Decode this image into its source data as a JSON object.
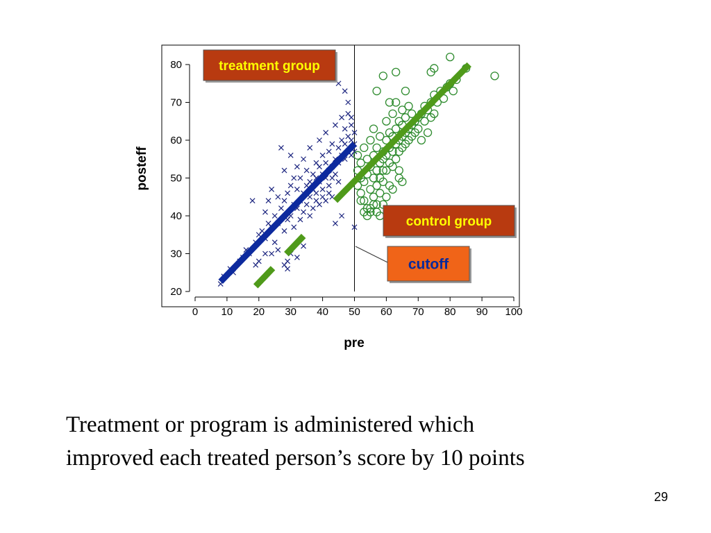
{
  "slide": {
    "caption_lines": [
      "Treatment or program is administered which",
      "improved each treated person’s score by 10 points"
    ],
    "page_number": "29"
  },
  "chart_data": {
    "type": "scatter",
    "xlabel": "pre",
    "ylabel": "posteff",
    "xlim": [
      0,
      100
    ],
    "ylim": [
      20,
      80
    ],
    "xticks": [
      0,
      10,
      20,
      30,
      40,
      50,
      60,
      70,
      80,
      90,
      100
    ],
    "yticks": [
      20,
      30,
      40,
      50,
      60,
      70,
      80
    ],
    "grid": false,
    "cutoff_x": 50,
    "annotations": {
      "treatment_label": "treatment group",
      "control_label": "control group",
      "cutoff_label": "cutoff"
    },
    "colors": {
      "treatment": "#1a237e",
      "treatment_line": "#0d2a9e",
      "control": "#2e8b2e",
      "control_line": "#4f9a1a",
      "label_box": "#b83a10",
      "label_text": "#ffff00",
      "cutoff_box": "#f06418",
      "cutoff_text": "#0a2a9a"
    },
    "series": [
      {
        "group": "treatment",
        "marker": "x",
        "points": [
          [
            8,
            22
          ],
          [
            9,
            24
          ],
          [
            11,
            26
          ],
          [
            12,
            25
          ],
          [
            14,
            28
          ],
          [
            15,
            29
          ],
          [
            16,
            31
          ],
          [
            17,
            30
          ],
          [
            18,
            44
          ],
          [
            19,
            33
          ],
          [
            19,
            27
          ],
          [
            20,
            35
          ],
          [
            21,
            36
          ],
          [
            22,
            34
          ],
          [
            22,
            41
          ],
          [
            23,
            38
          ],
          [
            23,
            44
          ],
          [
            24,
            37
          ],
          [
            24,
            47
          ],
          [
            25,
            33
          ],
          [
            25,
            40
          ],
          [
            26,
            38
          ],
          [
            26,
            45
          ],
          [
            27,
            58
          ],
          [
            27,
            42
          ],
          [
            28,
            36
          ],
          [
            28,
            44
          ],
          [
            28,
            52
          ],
          [
            29,
            39
          ],
          [
            29,
            28
          ],
          [
            29,
            46
          ],
          [
            30,
            40
          ],
          [
            30,
            48
          ],
          [
            30,
            56
          ],
          [
            31,
            43
          ],
          [
            31,
            37
          ],
          [
            31,
            50
          ],
          [
            32,
            42
          ],
          [
            32,
            47
          ],
          [
            32,
            53
          ],
          [
            33,
            39
          ],
          [
            33,
            44
          ],
          [
            33,
            50
          ],
          [
            34,
            46
          ],
          [
            34,
            41
          ],
          [
            34,
            55
          ],
          [
            35,
            48
          ],
          [
            35,
            43
          ],
          [
            35,
            52
          ],
          [
            36,
            49
          ],
          [
            36,
            45
          ],
          [
            36,
            58
          ],
          [
            37,
            47
          ],
          [
            37,
            51
          ],
          [
            37,
            42
          ],
          [
            38,
            50
          ],
          [
            38,
            54
          ],
          [
            38,
            46
          ],
          [
            39,
            49
          ],
          [
            39,
            53
          ],
          [
            39,
            60
          ],
          [
            40,
            51
          ],
          [
            40,
            47
          ],
          [
            40,
            56
          ],
          [
            41,
            50
          ],
          [
            41,
            54
          ],
          [
            41,
            62
          ],
          [
            42,
            52
          ],
          [
            42,
            48
          ],
          [
            42,
            57
          ],
          [
            43,
            53
          ],
          [
            43,
            50
          ],
          [
            43,
            59
          ],
          [
            44,
            55
          ],
          [
            44,
            51
          ],
          [
            44,
            64
          ],
          [
            45,
            54
          ],
          [
            45,
            58
          ],
          [
            45,
            49
          ],
          [
            46,
            56
          ],
          [
            46,
            60
          ],
          [
            46,
            66
          ],
          [
            47,
            55
          ],
          [
            47,
            59
          ],
          [
            47,
            63
          ],
          [
            48,
            57
          ],
          [
            48,
            61
          ],
          [
            48,
            67
          ],
          [
            49,
            56
          ],
          [
            49,
            60
          ],
          [
            49,
            64
          ],
          [
            49,
            58
          ],
          [
            50,
            59
          ],
          [
            50,
            57
          ],
          [
            50,
            62
          ],
          [
            50,
            37
          ],
          [
            32,
            29
          ],
          [
            34,
            32
          ],
          [
            36,
            40
          ],
          [
            38,
            44
          ],
          [
            40,
            45
          ],
          [
            42,
            46
          ],
          [
            44,
            38
          ],
          [
            45,
            75
          ],
          [
            46,
            40
          ],
          [
            47,
            73
          ],
          [
            48,
            70
          ],
          [
            49,
            66
          ],
          [
            28,
            27
          ],
          [
            29,
            26
          ],
          [
            30,
            30
          ],
          [
            26,
            31
          ],
          [
            24,
            30
          ],
          [
            22,
            30
          ],
          [
            20,
            28
          ],
          [
            43,
            45
          ],
          [
            41,
            44
          ],
          [
            39,
            43
          ]
        ]
      },
      {
        "group": "control",
        "marker": "o",
        "points": [
          [
            51,
            48
          ],
          [
            51,
            52
          ],
          [
            51,
            56
          ],
          [
            52,
            50
          ],
          [
            52,
            54
          ],
          [
            52,
            46
          ],
          [
            53,
            49
          ],
          [
            53,
            58
          ],
          [
            53,
            44
          ],
          [
            54,
            51
          ],
          [
            54,
            55
          ],
          [
            54,
            42
          ],
          [
            55,
            53
          ],
          [
            55,
            47
          ],
          [
            55,
            60
          ],
          [
            55,
            41
          ],
          [
            56,
            50
          ],
          [
            56,
            56
          ],
          [
            56,
            45
          ],
          [
            56,
            63
          ],
          [
            57,
            52
          ],
          [
            57,
            58
          ],
          [
            57,
            48
          ],
          [
            57,
            43
          ],
          [
            58,
            54
          ],
          [
            58,
            50
          ],
          [
            58,
            61
          ],
          [
            58,
            46
          ],
          [
            59,
            55
          ],
          [
            59,
            52
          ],
          [
            59,
            57
          ],
          [
            59,
            49
          ],
          [
            60,
            56
          ],
          [
            60,
            60
          ],
          [
            60,
            52
          ],
          [
            60,
            65
          ],
          [
            61,
            58
          ],
          [
            61,
            54
          ],
          [
            61,
            62
          ],
          [
            61,
            48
          ],
          [
            62,
            57
          ],
          [
            62,
            61
          ],
          [
            62,
            53
          ],
          [
            62,
            67
          ],
          [
            63,
            59
          ],
          [
            63,
            55
          ],
          [
            63,
            63
          ],
          [
            63,
            70
          ],
          [
            64,
            60
          ],
          [
            64,
            57
          ],
          [
            64,
            65
          ],
          [
            64,
            52
          ],
          [
            65,
            61
          ],
          [
            65,
            64
          ],
          [
            65,
            58
          ],
          [
            65,
            68
          ],
          [
            66,
            62
          ],
          [
            66,
            59
          ],
          [
            66,
            66
          ],
          [
            67,
            63
          ],
          [
            67,
            60
          ],
          [
            67,
            69
          ],
          [
            68,
            64
          ],
          [
            68,
            61
          ],
          [
            68,
            67
          ],
          [
            69,
            65
          ],
          [
            69,
            62
          ],
          [
            70,
            66
          ],
          [
            70,
            63
          ],
          [
            71,
            67
          ],
          [
            71,
            60
          ],
          [
            72,
            65
          ],
          [
            72,
            69
          ],
          [
            73,
            68
          ],
          [
            73,
            62
          ],
          [
            74,
            70
          ],
          [
            74,
            66
          ],
          [
            75,
            72
          ],
          [
            75,
            67
          ],
          [
            76,
            70
          ],
          [
            77,
            73
          ],
          [
            78,
            71
          ],
          [
            79,
            74
          ],
          [
            80,
            75
          ],
          [
            81,
            73
          ],
          [
            82,
            76
          ],
          [
            80,
            82
          ],
          [
            75,
            79
          ],
          [
            74,
            78
          ],
          [
            63,
            78
          ],
          [
            59,
            77
          ],
          [
            57,
            73
          ],
          [
            66,
            73
          ],
          [
            61,
            70
          ],
          [
            94,
            77
          ],
          [
            85,
            79
          ],
          [
            53,
            41
          ],
          [
            54,
            40
          ],
          [
            55,
            42
          ],
          [
            56,
            43
          ],
          [
            52,
            44
          ],
          [
            58,
            40
          ],
          [
            57,
            41
          ],
          [
            60,
            45
          ],
          [
            62,
            47
          ],
          [
            64,
            50
          ],
          [
            59,
            43
          ],
          [
            65,
            49
          ]
        ]
      }
    ],
    "lines": [
      {
        "group": "treatment",
        "style": "solid",
        "from": [
          8,
          22.6
        ],
        "to": [
          50,
          59
        ]
      },
      {
        "group": "control",
        "style": "solid",
        "from": [
          44,
          44
        ],
        "to": [
          86,
          80
        ]
      },
      {
        "group": "control",
        "style": "dashed",
        "from": [
          19,
          21.4
        ],
        "to": [
          38,
          38.2
        ]
      }
    ]
  }
}
